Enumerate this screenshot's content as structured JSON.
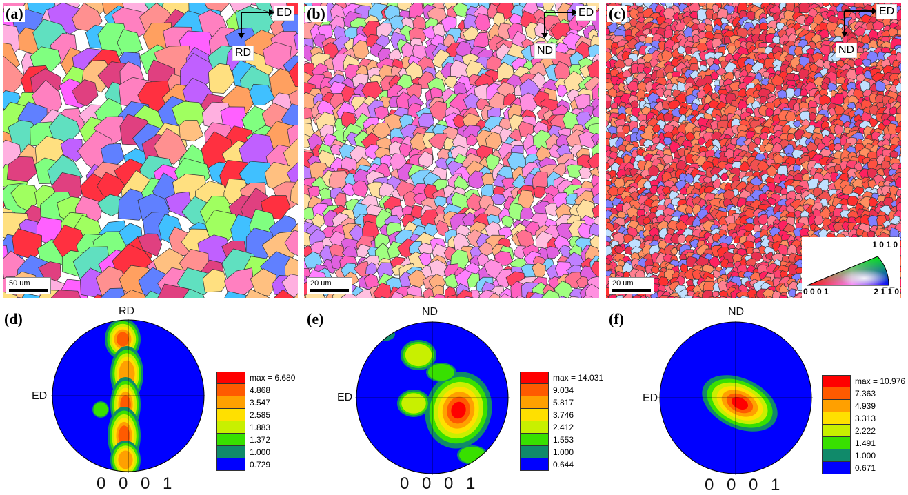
{
  "panels": {
    "a": {
      "label": "(a)",
      "scale": "50 um",
      "axis_h": "ED",
      "axis_v": "RD"
    },
    "b": {
      "label": "(b)",
      "scale": "20 um",
      "axis_h": "ED",
      "axis_v": "ND"
    },
    "c": {
      "label": "(c)",
      "scale": "20 um",
      "axis_h": "ED",
      "axis_v": "ND"
    },
    "d": {
      "label": "(d)",
      "top": "RD",
      "left": "ED",
      "bottom": "0 0 0 1",
      "legend": [
        "max = 6.680",
        "4.868",
        "3.547",
        "2.585",
        "1.883",
        "1.372",
        "1.000",
        "0.729"
      ]
    },
    "e": {
      "label": "(e)",
      "top": "ND",
      "left": "ED",
      "bottom": "0 0 0 1",
      "legend": [
        "max = 14.031",
        "9.034",
        "5.817",
        "3.746",
        "2.412",
        "1.553",
        "1.000",
        "0.644"
      ]
    },
    "f": {
      "label": "(f)",
      "top": "ND",
      "left": "ED",
      "bottom": "0 0 0 1",
      "legend": [
        "max = 10.976",
        "7.363",
        "4.939",
        "3.313",
        "2.222",
        "1.491",
        "1.000",
        "0.671"
      ]
    }
  },
  "ipf_key": {
    "top": "1 0 1̅ 0",
    "left": "0 0 0 1",
    "right": "2 1̅ 1̅ 0"
  },
  "legend_colors": [
    "#ff0000",
    "#ff5a00",
    "#ffa000",
    "#ffe000",
    "#c8f000",
    "#38e000",
    "#108a6a",
    "#0000ff"
  ]
}
